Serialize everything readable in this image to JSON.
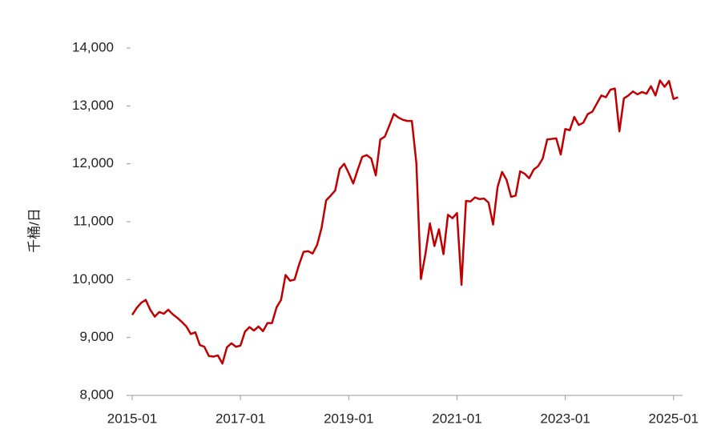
{
  "chart_data": {
    "type": "line",
    "ylabel": "千桶/日",
    "x": [
      "2015-01",
      "2015-02",
      "2015-03",
      "2015-04",
      "2015-05",
      "2015-06",
      "2015-07",
      "2015-08",
      "2015-09",
      "2015-10",
      "2015-11",
      "2015-12",
      "2016-01",
      "2016-02",
      "2016-03",
      "2016-04",
      "2016-05",
      "2016-06",
      "2016-07",
      "2016-08",
      "2016-09",
      "2016-10",
      "2016-11",
      "2016-12",
      "2017-01",
      "2017-02",
      "2017-03",
      "2017-04",
      "2017-05",
      "2017-06",
      "2017-07",
      "2017-08",
      "2017-09",
      "2017-10",
      "2017-11",
      "2017-12",
      "2018-01",
      "2018-02",
      "2018-03",
      "2018-04",
      "2018-05",
      "2018-06",
      "2018-07",
      "2018-08",
      "2018-09",
      "2018-10",
      "2018-11",
      "2018-12",
      "2019-01",
      "2019-02",
      "2019-03",
      "2019-04",
      "2019-05",
      "2019-06",
      "2019-07",
      "2019-08",
      "2019-09",
      "2019-10",
      "2019-11",
      "2019-12",
      "2020-01",
      "2020-02",
      "2020-03",
      "2020-04",
      "2020-05",
      "2020-06",
      "2020-07",
      "2020-08",
      "2020-09",
      "2020-10",
      "2020-11",
      "2020-12",
      "2021-01",
      "2021-02",
      "2021-03",
      "2021-04",
      "2021-05",
      "2021-06",
      "2021-07",
      "2021-08",
      "2021-09",
      "2021-10",
      "2021-11",
      "2021-12",
      "2022-01",
      "2022-02",
      "2022-03",
      "2022-04",
      "2022-05",
      "2022-06",
      "2022-07",
      "2022-08",
      "2022-09",
      "2022-10",
      "2022-11",
      "2022-12",
      "2023-01",
      "2023-02",
      "2023-03",
      "2023-04",
      "2023-05",
      "2023-06",
      "2023-07",
      "2023-08",
      "2023-09",
      "2023-10",
      "2023-11",
      "2023-12",
      "2024-01",
      "2024-02",
      "2024-03",
      "2024-04",
      "2024-05",
      "2024-06",
      "2024-07",
      "2024-08",
      "2024-09",
      "2024-10",
      "2024-11",
      "2024-12",
      "2025-01",
      "2025-02"
    ],
    "series": [
      {
        "color": "#c00000",
        "values": [
          9390,
          9510,
          9600,
          9650,
          9480,
          9360,
          9440,
          9410,
          9480,
          9400,
          9340,
          9270,
          9190,
          9060,
          9090,
          8870,
          8840,
          8680,
          8670,
          8690,
          8550,
          8830,
          8900,
          8840,
          8860,
          9100,
          9180,
          9120,
          9190,
          9110,
          9250,
          9250,
          9520,
          9650,
          10080,
          9980,
          10000,
          10260,
          10480,
          10490,
          10450,
          10600,
          10900,
          11370,
          11450,
          11540,
          11910,
          12000,
          11840,
          11660,
          11900,
          12120,
          12150,
          12090,
          11800,
          12420,
          12470,
          12660,
          12860,
          12800,
          12760,
          12740,
          12740,
          12010,
          10010,
          10440,
          10970,
          10580,
          10870,
          10440,
          11120,
          11060,
          11150,
          9910,
          11360,
          11350,
          11420,
          11390,
          11400,
          11330,
          10950,
          11600,
          11860,
          11720,
          11430,
          11450,
          11870,
          11830,
          11750,
          11900,
          11960,
          12090,
          12420,
          12430,
          12440,
          12160,
          12600,
          12580,
          12810,
          12670,
          12710,
          12860,
          12900,
          13040,
          13180,
          13150,
          13280,
          13300,
          12560,
          13130,
          13180,
          13250,
          13200,
          13240,
          13210,
          13340,
          13180,
          13440,
          13330,
          13430,
          13120,
          13150
        ]
      }
    ],
    "xlim": [
      "2015-01",
      "2025-03"
    ],
    "xticks": [
      "2015-01",
      "2017-01",
      "2019-01",
      "2021-01",
      "2023-01",
      "2025-01"
    ],
    "ylim": [
      8000,
      14000
    ],
    "yticks": [
      {
        "value": 8000,
        "label": "8,000"
      },
      {
        "value": 9000,
        "label": "9,000"
      },
      {
        "value": 10000,
        "label": "10,000"
      },
      {
        "value": 11000,
        "label": "11,000"
      },
      {
        "value": 12000,
        "label": "12,000"
      },
      {
        "value": 13000,
        "label": "13,000"
      },
      {
        "value": 14000,
        "label": "14,000"
      }
    ],
    "grid": false
  }
}
